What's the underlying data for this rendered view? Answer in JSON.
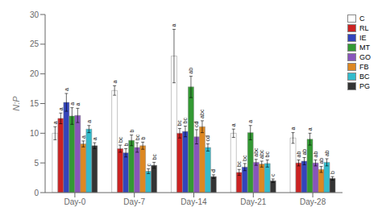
{
  "chart_data": {
    "type": "bar",
    "categories": [
      "Day-0",
      "Day-7",
      "Day-14",
      "Day-21",
      "Day-28"
    ],
    "series": [
      {
        "name": "C",
        "color": "#ffffff",
        "values": [
          10.0,
          17.2,
          23.0,
          10.0,
          9.2
        ],
        "errors": [
          1.1,
          0.8,
          4.5,
          0.7,
          0.9
        ],
        "significance": [
          "a",
          "a",
          "a",
          "a",
          "a"
        ]
      },
      {
        "name": "RL",
        "color": "#cc2222",
        "values": [
          12.5,
          7.4,
          10.0,
          3.4,
          5.0
        ],
        "errors": [
          0.9,
          0.6,
          0.8,
          0.5,
          0.5
        ],
        "significance": [
          "a",
          "bc",
          "bc",
          "bc",
          "ab"
        ]
      },
      {
        "name": "IE",
        "color": "#3344bb",
        "values": [
          15.2,
          6.7,
          10.3,
          4.3,
          5.3
        ],
        "errors": [
          1.5,
          0.7,
          0.9,
          0.6,
          0.6
        ],
        "significance": [
          "a",
          "b",
          "bc",
          "bc",
          "ab"
        ]
      },
      {
        "name": "MT",
        "color": "#339933",
        "values": [
          12.9,
          8.8,
          17.8,
          10.1,
          9.0
        ],
        "errors": [
          1.4,
          0.9,
          1.8,
          1.2,
          1.0
        ],
        "significance": [
          "a",
          "b",
          "ab",
          "a",
          "a"
        ]
      },
      {
        "name": "GO",
        "color": "#8855bb",
        "values": [
          13.0,
          7.6,
          9.4,
          5.1,
          5.0
        ],
        "errors": [
          1.2,
          0.8,
          1.2,
          0.5,
          0.5
        ],
        "significance": [
          "a",
          "bc",
          "cd",
          "abc",
          "ab"
        ]
      },
      {
        "name": "FB",
        "color": "#dd8822",
        "values": [
          8.2,
          7.9,
          11.1,
          4.8,
          3.9
        ],
        "errors": [
          0.5,
          0.6,
          1.0,
          0.5,
          0.5
        ],
        "significance": [
          "a",
          "b",
          "abc",
          "abc",
          "ab"
        ]
      },
      {
        "name": "BC",
        "color": "#33bbcc",
        "values": [
          10.7,
          3.6,
          7.6,
          4.9,
          5.1
        ],
        "errors": [
          0.6,
          0.4,
          0.6,
          0.6,
          0.6
        ],
        "significance": [
          "a",
          "c",
          "cd",
          "bc",
          "ab"
        ]
      },
      {
        "name": "PG",
        "color": "#333333",
        "values": [
          7.9,
          4.6,
          2.7,
          2.0,
          2.4
        ],
        "errors": [
          0.5,
          0.5,
          0.3,
          0.3,
          0.3
        ],
        "significance": [
          "a",
          "bc",
          "d",
          "c",
          "b"
        ]
      }
    ],
    "ylabel": "N:P",
    "ylim": [
      0,
      30
    ],
    "yticks": [
      0,
      5,
      10,
      15,
      20,
      25,
      30
    ],
    "grid": false,
    "legend": "upper right"
  }
}
